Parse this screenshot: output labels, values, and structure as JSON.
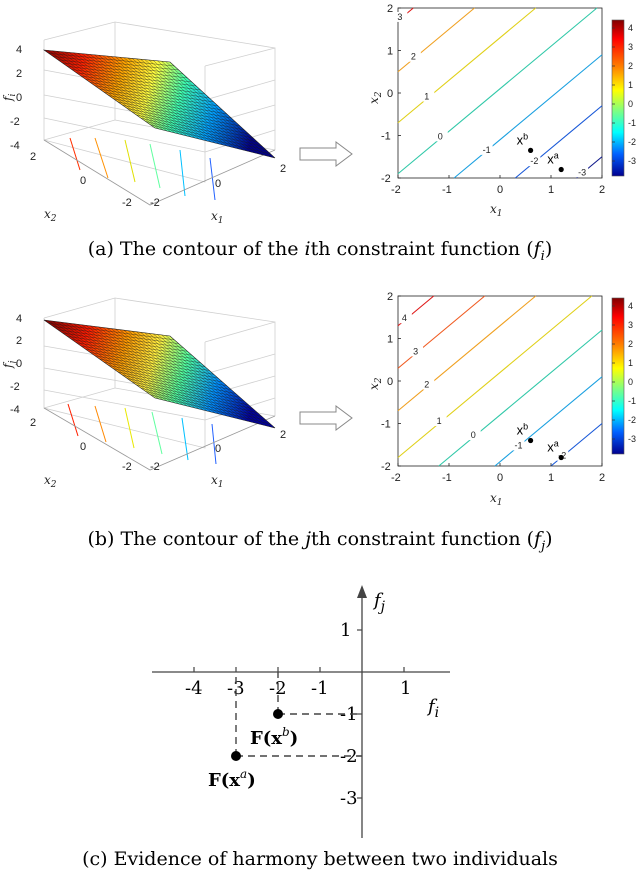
{
  "panel_a": {
    "caption": "(a) The contour of the ith constraint function (fi)",
    "surface": {
      "zlabel": "f_i",
      "xlabel": "x_1",
      "ylabel": "x_2",
      "zticks": [
        "4",
        "2",
        "0",
        "-2",
        "-4"
      ],
      "x1ticks": [
        "-2",
        "0",
        "2"
      ],
      "x2ticks": [
        "2",
        "0",
        "-2"
      ],
      "high_corner": "back-left"
    },
    "contour": {
      "xlabel": "x_1",
      "ylabel": "x_2",
      "xticks": [
        "-2",
        "-1",
        "0",
        "1",
        "2"
      ],
      "yticks": [
        "2",
        "1",
        "0",
        "-1",
        "-2"
      ],
      "xlim": [
        -2,
        2
      ],
      "ylim": [
        -2,
        2
      ],
      "levels": [
        3,
        2,
        1,
        0,
        -1,
        -2,
        -3
      ],
      "level_labels": [
        "3",
        "2",
        "1",
        "0",
        "-1",
        "-2",
        "-3"
      ],
      "colorbar_ticks": [
        "4",
        "3",
        "2",
        "1",
        "0",
        "-1",
        "-2",
        "-3"
      ],
      "points": [
        {
          "label": "x^b",
          "x": 0.6,
          "y": -1.35
        },
        {
          "label": "x^a",
          "x": 1.2,
          "y": -1.8
        }
      ]
    }
  },
  "panel_b": {
    "caption": "(b) The contour of the jth constraint function (fj)",
    "surface": {
      "zlabel": "f_j",
      "xlabel": "x_1",
      "ylabel": "x_2",
      "zticks": [
        "4",
        "2",
        "0",
        "-2",
        "-4"
      ],
      "x1ticks": [
        "-2",
        "0",
        "2"
      ],
      "x2ticks": [
        "2",
        "0",
        "-2"
      ],
      "high_corner": "back-left"
    },
    "contour": {
      "xlabel": "x_1",
      "ylabel": "x_2",
      "xticks": [
        "-2",
        "-1",
        "0",
        "1",
        "2"
      ],
      "yticks": [
        "2",
        "1",
        "0",
        "-1",
        "-2"
      ],
      "xlim": [
        -2,
        2
      ],
      "ylim": [
        -2,
        2
      ],
      "level_labels": [
        "4",
        "3",
        "2",
        "1",
        "0",
        "-1",
        "-2"
      ],
      "colorbar_ticks": [
        "4",
        "3",
        "2",
        "1",
        "0",
        "-1",
        "-2",
        "-3"
      ],
      "points": [
        {
          "label": "x^b",
          "x": 0.6,
          "y": -1.4
        },
        {
          "label": "x^a",
          "x": 1.2,
          "y": -1.8
        }
      ]
    }
  },
  "panel_c": {
    "caption": "(c) Evidence of harmony between two individuals",
    "xaxis_label": "f_i",
    "yaxis_label": "f_j",
    "xticks": [
      "-4",
      "-3",
      "-2",
      "-1",
      "1"
    ],
    "yticks": [
      "1",
      "-1",
      "-2",
      "-3"
    ],
    "points": [
      {
        "label": "F(x^b)",
        "fi": -2,
        "fj": -1
      },
      {
        "label": "F(x^a)",
        "fi": -3,
        "fj": -2
      }
    ]
  },
  "colors": {
    "jet_high": "#8b0000",
    "jet_mid": "#ffff00",
    "jet_low": "#00008b",
    "mesh_line": "#222222",
    "axis": "#555555",
    "dashed": "#444444"
  }
}
